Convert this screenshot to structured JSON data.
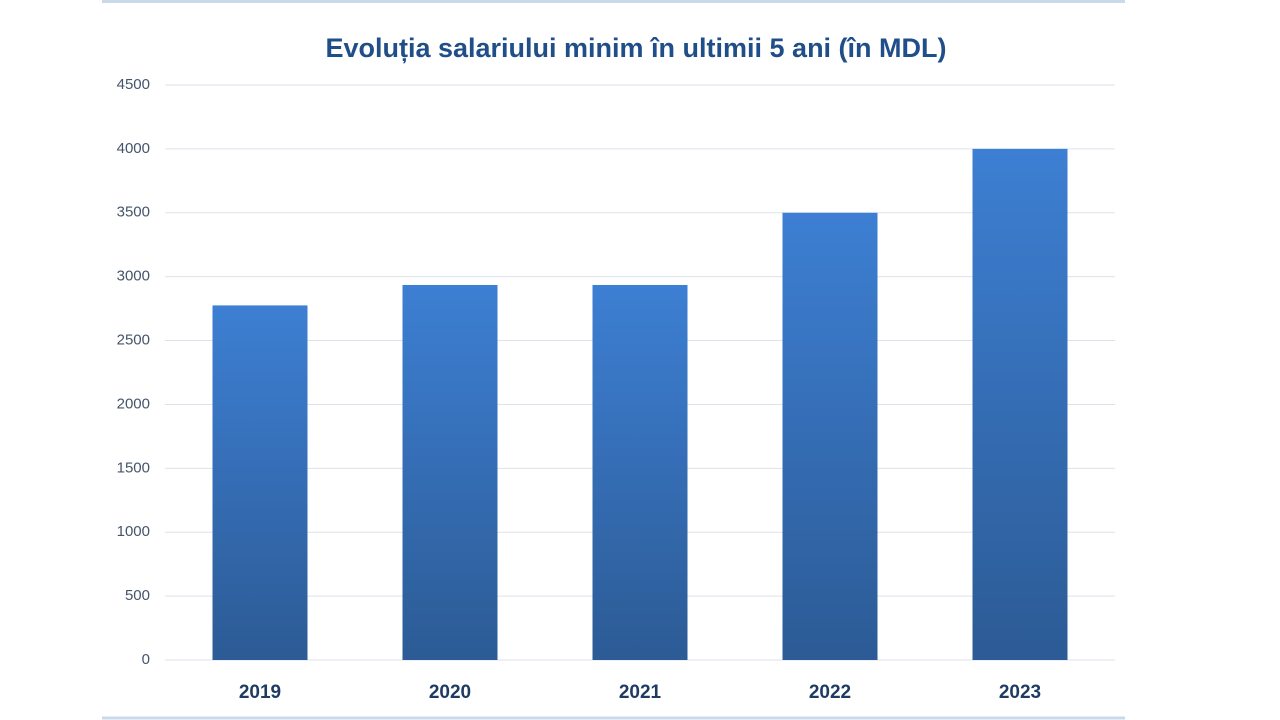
{
  "chart_data": {
    "type": "bar",
    "title": "Evoluția salariului minim în ultimii 5 ani (în MDL)",
    "categories": [
      "2019",
      "2020",
      "2021",
      "2022",
      "2023"
    ],
    "values": [
      2775,
      2935,
      2935,
      3500,
      4000
    ],
    "color": "#3d7fd3",
    "ylim": [
      0,
      4500
    ],
    "yticks": [
      0,
      500,
      1000,
      1500,
      2000,
      2500,
      3000,
      3500,
      4000,
      4500
    ],
    "grid": true
  }
}
